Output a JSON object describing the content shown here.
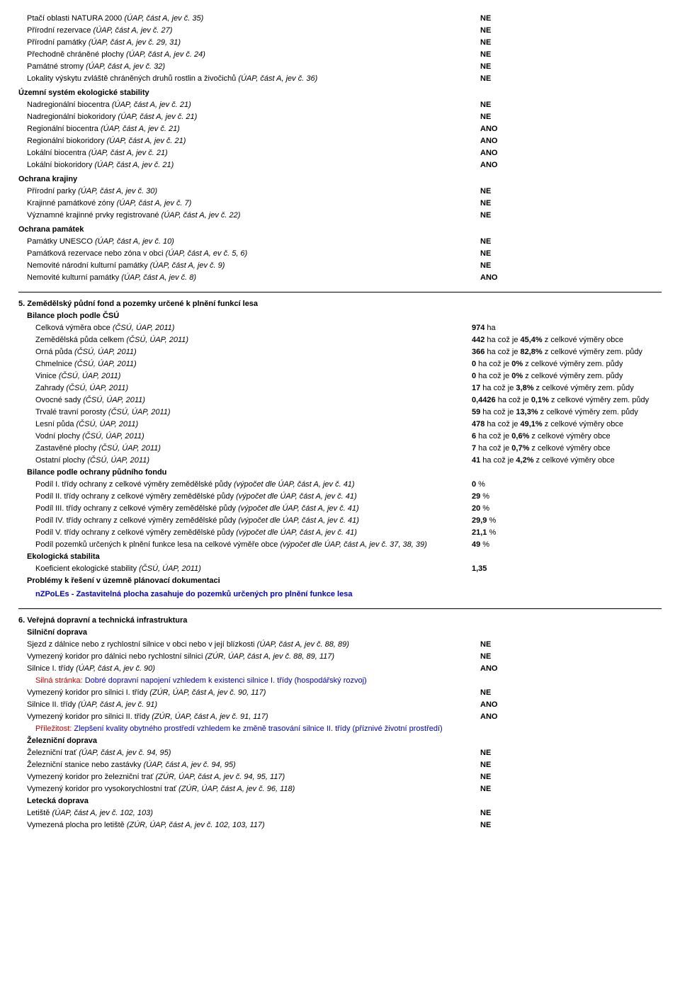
{
  "section4_rows": [
    {
      "label": "Ptačí oblasti NATURA 2000",
      "italic": "(ÚAP, část A, jev č. 35)",
      "value": "NE",
      "indent": 1
    },
    {
      "label": "Přírodní rezervace",
      "italic": "(ÚAP, část A, jev č. 27)",
      "value": "NE",
      "indent": 1
    },
    {
      "label": "Přírodní památky",
      "italic": "(ÚAP, část A, jev č. 29, 31)",
      "value": "NE",
      "indent": 1
    },
    {
      "label": "Přechodně chráněné plochy",
      "italic": "(ÚAP, část A, jev č. 24)",
      "value": "NE",
      "indent": 1
    },
    {
      "label": "Památné stromy",
      "italic": "(ÚAP, část A, jev č. 32)",
      "value": "NE",
      "indent": 1
    },
    {
      "label": "Lokality výskytu zvláště chráněných druhů rostlin a živočichů",
      "italic": "(ÚAP, část A, jev č. 36)",
      "value": "NE",
      "indent": 1
    },
    {
      "heading": "Územní systém ekologické stability",
      "indent": 0
    },
    {
      "label": "Nadregionální biocentra",
      "italic": "(ÚAP, část A, jev č. 21)",
      "value": "NE",
      "indent": 1
    },
    {
      "label": "Nadregionální biokoridory",
      "italic": "(ÚAP, část A, jev č. 21)",
      "value": "NE",
      "indent": 1
    },
    {
      "label": "Regionální biocentra",
      "italic": "(ÚAP, část A, jev č. 21)",
      "value": "ANO",
      "indent": 1
    },
    {
      "label": "Regionální biokoridory",
      "italic": "(ÚAP, část A, jev č. 21)",
      "value": "ANO",
      "indent": 1
    },
    {
      "label": "Lokální biocentra",
      "italic": "(ÚAP, část A, jev č. 21)",
      "value": "ANO",
      "indent": 1
    },
    {
      "label": "Lokální biokoridory",
      "italic": "(ÚAP, část A, jev č. 21)",
      "value": "ANO",
      "indent": 1
    },
    {
      "heading": "Ochrana krajiny",
      "indent": 0
    },
    {
      "label": "Přírodní parky",
      "italic": "(ÚAP, část A, jev č. 30)",
      "value": "NE",
      "indent": 1
    },
    {
      "label": "Krajinné památkové zóny",
      "italic": "(ÚAP, část A, jev č. 7)",
      "value": "NE",
      "indent": 1
    },
    {
      "label": "Významné krajinné prvky registrované",
      "italic": "(ÚAP, část A, jev č. 22)",
      "value": "NE",
      "indent": 1
    },
    {
      "heading": "Ochrana památek",
      "indent": 0
    },
    {
      "label": "Památky UNESCO",
      "italic": "(ÚAP, část A, jev č. 10)",
      "value": "NE",
      "indent": 1
    },
    {
      "label": "Památková rezervace nebo zóna v obci",
      "italic": "(ÚAP, část A, ev č. 5, 6)",
      "value": "NE",
      "indent": 1
    },
    {
      "label": "Nemovité národní kulturní památky",
      "italic": "(ÚAP, část A, jev č. 9)",
      "value": "NE",
      "indent": 1
    },
    {
      "label": "Nemovité kulturní památky",
      "italic": "(ÚAP, část A, jev č. 8)",
      "value": "ANO",
      "indent": 1
    }
  ],
  "section5_title": "5. Zemědělský půdní fond a pozemky určené k plnění funkcí lesa",
  "section5_sub1": "Bilance ploch podle ČSÚ",
  "section5_rows1": [
    {
      "label": "Celková výměra obce",
      "italic": "(ČSÚ, ÚAP, 2011)",
      "value": "974",
      "unit": "ha",
      "extra": ""
    },
    {
      "label": "Zemědělská půda celkem",
      "italic": "(ČSÚ, ÚAP, 2011)",
      "value": "442",
      "unit": "ha",
      "extra_prefix": "což je ",
      "extra_bold": "45,4%",
      "extra_suffix": "  z celkové výměry obce"
    },
    {
      "label": "Orná půda",
      "italic": "(ČSÚ, ÚAP, 2011)",
      "value": "366",
      "unit": "ha",
      "extra_prefix": "což je ",
      "extra_bold": "82,8%",
      "extra_suffix": "  z celkové výměry zem. půdy"
    },
    {
      "label": "Chmelnice",
      "italic": "(ČSÚ, ÚAP, 2011)",
      "value": "0",
      "unit": "ha",
      "extra_prefix": "což je ",
      "extra_bold": "0%",
      "extra_suffix": "  z celkové výměry zem. půdy"
    },
    {
      "label": "Vinice",
      "italic": "(ČSÚ, ÚAP, 2011)",
      "value": "0",
      "unit": "ha",
      "extra_prefix": "což je ",
      "extra_bold": "0%",
      "extra_suffix": "  z celkové výměry zem. půdy"
    },
    {
      "label": "Zahrady",
      "italic": "(ČSÚ, ÚAP, 2011)",
      "value": "17",
      "unit": "ha",
      "extra_prefix": "což je ",
      "extra_bold": "3,8%",
      "extra_suffix": "  z celkové výměry zem. půdy"
    },
    {
      "label": "Ovocné sady",
      "italic": "(ČSÚ, ÚAP, 2011)",
      "value": "0,4426",
      "unit": "ha",
      "extra_prefix": "což je ",
      "extra_bold": "0,1%",
      "extra_suffix": "  z celkové výměry zem. půdy",
      "wrap": true
    },
    {
      "label": "Trvalé travní porosty",
      "italic": "(ČSÚ, ÚAP, 2011)",
      "value": "59",
      "unit": "ha",
      "extra_prefix": "což je ",
      "extra_bold": "13,3%",
      "extra_suffix": "  z celkové výměry zem. půdy"
    },
    {
      "label": "Lesní půda",
      "italic": "(ČSÚ, ÚAP, 2011)",
      "value": "478",
      "unit": "ha",
      "extra_prefix": "což je ",
      "extra_bold": "49,1%",
      "extra_suffix": "  z celkové výměry obce"
    },
    {
      "label": "Vodní plochy",
      "italic": "(ČSÚ, ÚAP, 2011)",
      "value": "6",
      "unit": "ha",
      "extra_prefix": "což je ",
      "extra_bold": "0,6%",
      "extra_suffix": "  z celkové výměry obce"
    },
    {
      "label": "Zastavěné plochy",
      "italic": "(ČSÚ, ÚAP, 2011)",
      "value": "7",
      "unit": "ha",
      "extra_prefix": "což je ",
      "extra_bold": "0,7%",
      "extra_suffix": "  z celkové výměry obce"
    },
    {
      "label": "Ostatní plochy",
      "italic": "(ČSÚ, ÚAP, 2011)",
      "value": "41",
      "unit": "ha",
      "extra_prefix": "což je ",
      "extra_bold": "4,2%",
      "extra_suffix": "  z celkové výměry obce"
    }
  ],
  "section5_sub2": "Bilance podle ochrany půdního fondu",
  "section5_rows2": [
    {
      "label": "Podíl I. třídy ochrany z celkové výměry zemědělské půdy",
      "italic": "(výpočet dle ÚAP, část A, jev č. 41)",
      "value": "0",
      "unit": "%"
    },
    {
      "label": "Podíl II. třídy ochrany z celkové výměry zemědělské půdy",
      "italic": "(výpočet dle ÚAP, část A, jev č. 41)",
      "value": "29",
      "unit": "%"
    },
    {
      "label": "Podíl III. třídy ochrany z celkové výměry zemědělské půdy",
      "italic": "(výpočet dle ÚAP, část A, jev č. 41)",
      "value": "20",
      "unit": "%"
    },
    {
      "label": "Podíl IV. třídy ochrany z celkové výměry zemědělské půdy",
      "italic": "(výpočet dle ÚAP, část A, jev č. 41)",
      "value": "29,9",
      "unit": "%"
    },
    {
      "label": "Podíl V. třídy ochrany z celkové výměry zemědělské půdy",
      "italic": "(výpočet dle ÚAP, část A, jev č. 41)",
      "value": "21,1",
      "unit": "%"
    },
    {
      "label": "Podíl pozemků určených k plnění funkce lesa na celkové výměře obce",
      "italic": "(výpočet dle ÚAP, část A, jev č. 37, 38, 39)",
      "value": "49",
      "unit": "%"
    }
  ],
  "section5_sub3": "Ekologická stabilita",
  "section5_rows3": [
    {
      "label": "Koeficient ekologické stability",
      "italic": "(ČSÚ, ÚAP, 2011)",
      "value": "1,35",
      "unit": ""
    }
  ],
  "section5_sub4": "Problémy k řešení v územně plánovací dokumentaci",
  "section5_problem": "nZPoLEs - Zastavitelná plocha zasahuje do pozemků určených pro plnění funkce lesa",
  "section6_title": "6. Veřejná dopravní a technická infrastruktura",
  "section6_sub1": "Silniční doprava",
  "section6_rows1": [
    {
      "label": "Sjezd z dálnice nebo z rychlostní silnice v obci nebo v její blízkosti",
      "italic": "(ÚAP, část A, jev č. 88, 89)",
      "value": "NE"
    },
    {
      "label": "Vymezený koridor pro dálnici nebo rychlostní silnici",
      "italic": "(ZÚR, ÚAP, část A, jev č. 88, 89, 117)",
      "value": "NE"
    },
    {
      "label": "Silnice I. třídy",
      "italic": "(ÚAP, část A, jev č. 90)",
      "value": "ANO"
    }
  ],
  "section6_note1_label": "Silná stránka:  ",
  "section6_note1_text": "Dobré dopravní napojení vzhledem k existenci silnice I. třídy (hospodářský rozvoj)",
  "section6_rows1b": [
    {
      "label": "Vymezený koridor pro silnici I. třídy",
      "italic": "(ZÚR, ÚAP, část A, jev č. 90, 117)",
      "value": "NE"
    },
    {
      "label": "Silnice II. třídy",
      "italic": "(ÚAP, část A, jev č. 91)",
      "value": "ANO"
    },
    {
      "label": "Vymezený koridor pro silnici II. třídy",
      "italic": "(ZÚR, ÚAP, část A, jev č. 91, 117)",
      "value": "ANO"
    }
  ],
  "section6_note2_label": "Příležitost:  ",
  "section6_note2_text": "Zlepšení kvality obytného prostředí vzhledem ke změně trasování silnice II. třídy (příznivé životní prostředí)",
  "section6_sub2": "Železniční doprava",
  "section6_rows2": [
    {
      "label": "Železniční trať",
      "italic": "(ÚAP, část A, jev č. 94, 95)",
      "value": "NE"
    },
    {
      "label": "Železniční stanice nebo zastávky",
      "italic": "(ÚAP, část A, jev č. 94, 95)",
      "value": "NE"
    },
    {
      "label": "Vymezený koridor pro železniční trať",
      "italic": "(ZÚR, ÚAP, část A, jev č. 94, 95, 117)",
      "value": "NE"
    },
    {
      "label": "Vymezený koridor pro vysokorychlostní trať",
      "italic": "(ZÚR, ÚAP, část A, jev č. 96, 118)",
      "value": "NE"
    }
  ],
  "section6_sub3": "Letecká doprava",
  "section6_rows3": [
    {
      "label": "Letiště",
      "italic": "(ÚAP, část A, jev č. 102, 103)",
      "value": "NE"
    },
    {
      "label": "Vymezená plocha pro letiště",
      "italic": "(ZÚR, ÚAP, část A, jev č. 102, 103, 117)",
      "value": "NE"
    }
  ]
}
